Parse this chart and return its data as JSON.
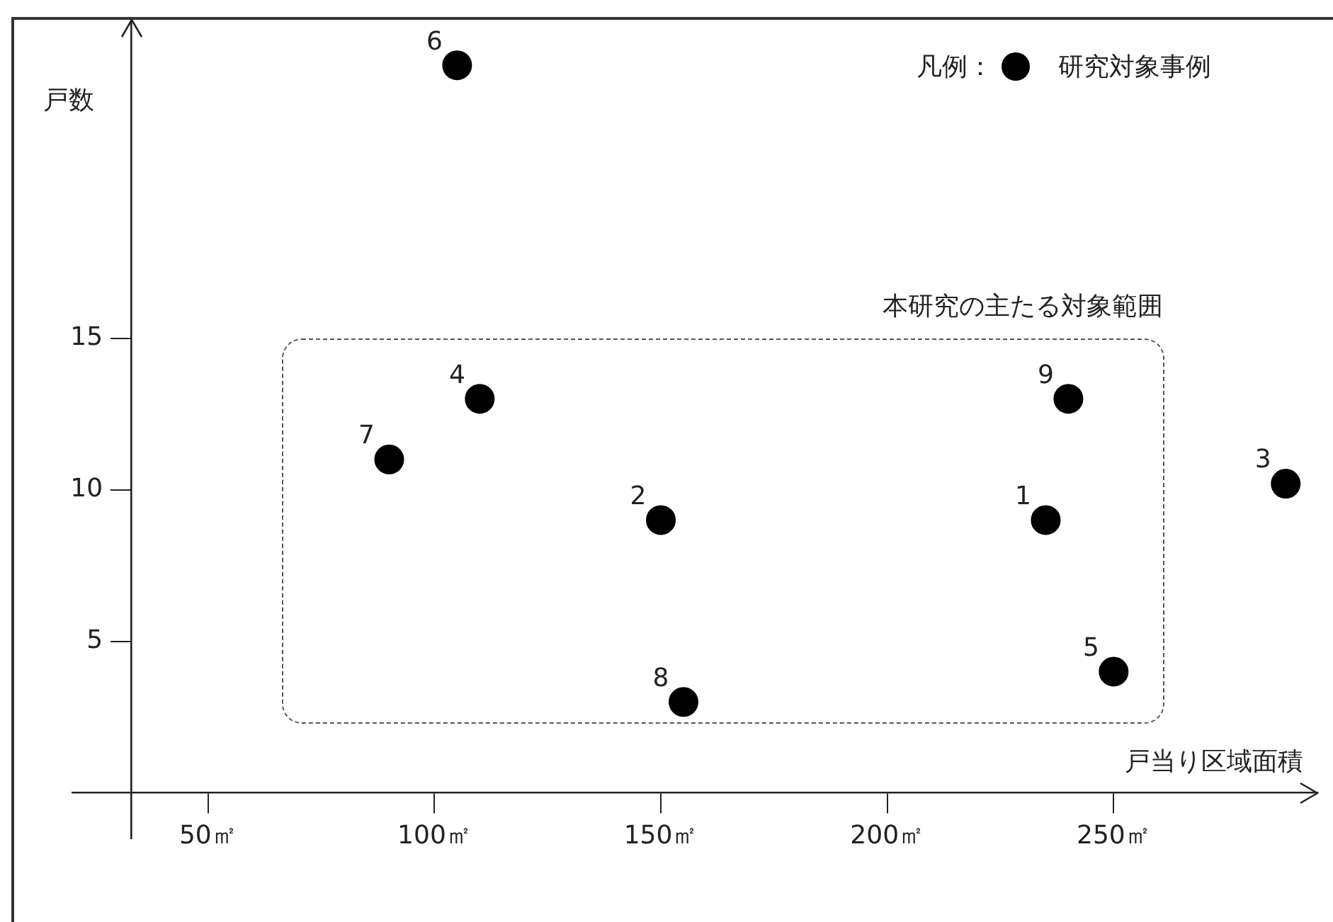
{
  "chart_data": {
    "type": "scatter",
    "xlabel": "戸当り区域面積",
    "ylabel": "戸数",
    "legend_title": "凡例：",
    "legend": "top right",
    "marker": "circle",
    "grid": false,
    "x": [
      235,
      150,
      288,
      110,
      250,
      105,
      90,
      155,
      240
    ],
    "series": [
      {
        "name": "研究対象事例",
        "color": "#000000",
        "values": [
          9,
          9,
          10.2,
          13,
          4,
          24,
          11,
          3,
          13
        ]
      }
    ],
    "xlim": [
      20,
      295
    ],
    "xticks": [
      {
        "value": 50,
        "label": "50㎡"
      },
      {
        "value": 100,
        "label": "100㎡"
      },
      {
        "value": 150,
        "label": "150㎡"
      },
      {
        "value": 200,
        "label": "200㎡"
      },
      {
        "value": 250,
        "label": "250㎡"
      }
    ],
    "ylim": [
      -1.5,
      25.5
    ],
    "yticks": [
      5,
      10,
      15
    ],
    "annotations": [
      "本研究の主たる対象範囲",
      {
        "text": "1",
        "x": 235,
        "y": 9
      },
      {
        "text": "2",
        "x": 150,
        "y": 9
      },
      {
        "text": "3",
        "x": 288,
        "y": 10.2
      },
      {
        "text": "4",
        "x": 110,
        "y": 13
      },
      {
        "text": "5",
        "x": 250,
        "y": 4
      },
      {
        "text": "6",
        "x": 105,
        "y": 24
      },
      {
        "text": "7",
        "x": 90,
        "y": 11
      },
      {
        "text": "8",
        "x": 155,
        "y": 3
      },
      {
        "text": "9",
        "x": 240,
        "y": 13
      }
    ]
  }
}
